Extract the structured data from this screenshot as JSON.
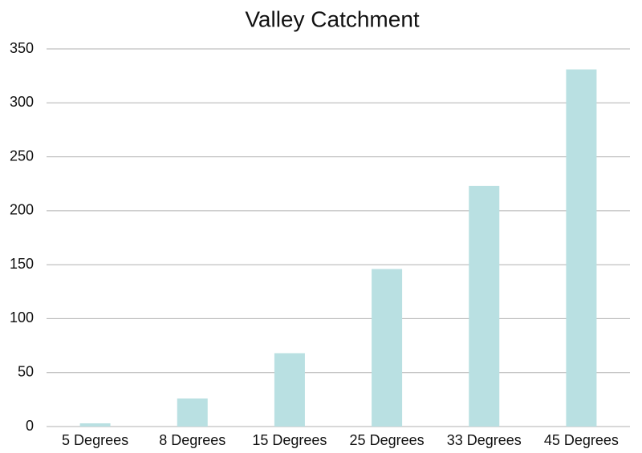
{
  "chart_data": {
    "type": "bar",
    "title": "Valley Catchment",
    "categories": [
      "5 Degrees",
      "8 Degrees",
      "15 Degrees",
      "25 Degrees",
      "33 Degrees",
      "45 Degrees"
    ],
    "values": [
      3,
      26,
      68,
      146,
      223,
      331
    ],
    "color": "#b9e0e2",
    "ylim": [
      0,
      350
    ],
    "yticks": [
      0,
      50,
      100,
      150,
      200,
      250,
      300,
      350
    ],
    "grid": true
  }
}
